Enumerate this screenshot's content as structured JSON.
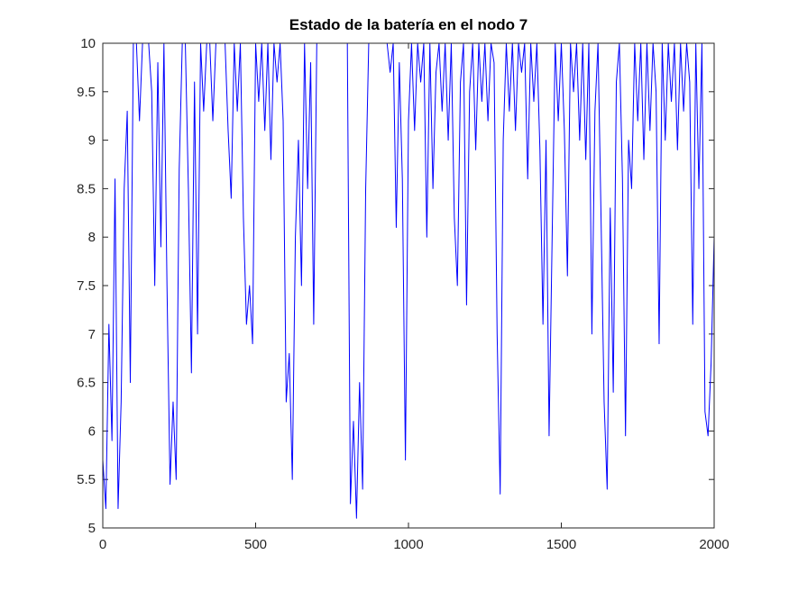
{
  "chart_data": {
    "type": "line",
    "title": "Estado de la batería en el nodo 7",
    "x": [
      0,
      10,
      20,
      30,
      40,
      50,
      60,
      70,
      80,
      90,
      100,
      110,
      120,
      130,
      140,
      150,
      160,
      170,
      180,
      190,
      200,
      210,
      220,
      230,
      240,
      250,
      260,
      270,
      280,
      290,
      300,
      310,
      320,
      330,
      340,
      350,
      360,
      370,
      380,
      390,
      400,
      410,
      420,
      430,
      440,
      450,
      460,
      470,
      480,
      490,
      500,
      510,
      520,
      530,
      540,
      550,
      560,
      570,
      580,
      590,
      600,
      610,
      620,
      630,
      640,
      650,
      660,
      670,
      680,
      690,
      700,
      710,
      720,
      730,
      740,
      750,
      760,
      770,
      780,
      790,
      800,
      810,
      820,
      830,
      840,
      850,
      860,
      870,
      880,
      890,
      900,
      910,
      920,
      930,
      940,
      950,
      960,
      970,
      980,
      990,
      1000,
      1010,
      1020,
      1030,
      1040,
      1050,
      1060,
      1070,
      1080,
      1090,
      1100,
      1110,
      1120,
      1130,
      1140,
      1150,
      1160,
      1170,
      1180,
      1190,
      1200,
      1210,
      1220,
      1230,
      1240,
      1250,
      1260,
      1270,
      1280,
      1290,
      1300,
      1310,
      1320,
      1330,
      1340,
      1350,
      1360,
      1370,
      1380,
      1390,
      1400,
      1410,
      1420,
      1430,
      1440,
      1450,
      1460,
      1470,
      1480,
      1490,
      1500,
      1510,
      1520,
      1530,
      1540,
      1550,
      1560,
      1570,
      1580,
      1590,
      1600,
      1610,
      1620,
      1630,
      1640,
      1650,
      1660,
      1670,
      1680,
      1690,
      1700,
      1710,
      1720,
      1730,
      1740,
      1750,
      1760,
      1770,
      1780,
      1790,
      1800,
      1810,
      1820,
      1830,
      1840,
      1850,
      1860,
      1870,
      1880,
      1890,
      1900,
      1910,
      1920,
      1930,
      1940,
      1950,
      1960,
      1970,
      1980,
      1990,
      2000
    ],
    "series": [
      {
        "color": "#0000ff",
        "values": [
          5.7,
          5.2,
          7.1,
          5.9,
          8.6,
          5.2,
          6.3,
          8.5,
          9.3,
          6.5,
          10,
          10,
          9.2,
          10,
          10,
          10,
          9.5,
          7.5,
          9.8,
          7.9,
          10,
          7.5,
          5.45,
          6.3,
          5.5,
          8.7,
          10,
          10,
          8.5,
          6.6,
          9.6,
          7.0,
          10,
          9.3,
          10,
          10,
          9.2,
          10,
          10,
          10,
          10,
          9.1,
          8.4,
          10,
          9.3,
          10,
          8.2,
          7.1,
          7.5,
          6.9,
          10,
          9.4,
          10,
          9.1,
          10,
          8.8,
          10,
          9.6,
          10,
          9.2,
          6.3,
          6.8,
          5.5,
          8.0,
          9.0,
          7.5,
          10,
          8.5,
          9.8,
          7.1,
          10,
          10,
          10,
          10,
          10,
          10,
          10,
          10,
          10,
          10,
          10,
          5.25,
          6.1,
          5.1,
          6.5,
          5.4,
          8.5,
          10,
          10,
          10,
          10,
          10,
          10,
          10,
          9.7,
          10,
          8.1,
          9.8,
          8.6,
          5.7,
          9.2,
          10,
          9.1,
          10,
          9.6,
          10,
          8.0,
          10,
          8.5,
          9.7,
          10,
          9.3,
          10,
          9.0,
          10,
          8.2,
          7.5,
          9.6,
          10,
          7.3,
          9.5,
          10,
          8.9,
          10,
          9.4,
          10,
          9.2,
          10,
          9.8,
          7.0,
          5.35,
          9.0,
          10,
          9.3,
          10,
          9.1,
          10,
          9.7,
          10,
          8.6,
          10,
          9.4,
          10,
          8.9,
          7.1,
          9.0,
          5.95,
          8.0,
          10,
          9.2,
          10,
          9.1,
          7.6,
          10,
          9.5,
          10,
          9.0,
          10,
          8.8,
          10,
          7.0,
          9.3,
          10,
          8.2,
          6.3,
          5.4,
          8.3,
          6.4,
          9.6,
          10,
          8.6,
          5.95,
          9.0,
          8.5,
          10,
          9.2,
          10,
          8.8,
          10,
          9.1,
          10,
          9.5,
          6.9,
          10,
          9.0,
          10,
          9.4,
          10,
          8.9,
          10,
          9.3,
          10,
          9.6,
          7.1,
          10,
          8.5,
          10,
          6.2,
          5.95,
          6.7,
          8.0
        ]
      }
    ],
    "xlim": [
      0,
      2000
    ],
    "xticks": [
      0,
      500,
      1000,
      1500,
      2000
    ],
    "ylim": [
      5,
      10
    ],
    "yticks": [
      5,
      5.5,
      6,
      6.5,
      7,
      7.5,
      8,
      8.5,
      9,
      9.5,
      10
    ],
    "grid": false
  }
}
